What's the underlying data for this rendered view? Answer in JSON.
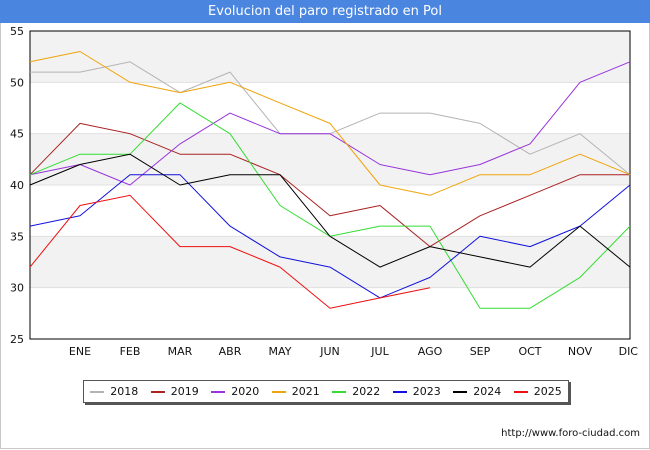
{
  "header": {
    "title": "Evolucion del paro registrado en Pol"
  },
  "source": "http://www.foro-ciudad.com",
  "chart_data": {
    "type": "line",
    "title": "Evolucion del paro registrado en Pol",
    "xlabel": "",
    "ylabel": "",
    "categories": [
      "",
      "ENE",
      "FEB",
      "MAR",
      "ABR",
      "MAY",
      "JUN",
      "JUL",
      "AGO",
      "SEP",
      "OCT",
      "NOV",
      "DIC"
    ],
    "ylim": [
      25,
      55
    ],
    "yticks": [
      25,
      30,
      35,
      40,
      45,
      50,
      55
    ],
    "grid": "horizontal bands",
    "legend_position": "bottom",
    "series": [
      {
        "name": "2018",
        "color": "#b4b4b4",
        "values": [
          51,
          51,
          52,
          49,
          51,
          45,
          45,
          47,
          47,
          46,
          43,
          45,
          41
        ]
      },
      {
        "name": "2019",
        "color": "#aa2222",
        "values": [
          41,
          46,
          45,
          43,
          43,
          41,
          37,
          38,
          34,
          37,
          39,
          41,
          41
        ]
      },
      {
        "name": "2020",
        "color": "#9933dd",
        "values": [
          41,
          42,
          40,
          44,
          47,
          45,
          45,
          42,
          41,
          42,
          44,
          50,
          52
        ]
      },
      {
        "name": "2021",
        "color": "#f0a30a",
        "values": [
          52,
          53,
          50,
          49,
          50,
          48,
          46,
          40,
          39,
          41,
          41,
          43,
          41
        ]
      },
      {
        "name": "2022",
        "color": "#33dd33",
        "values": [
          41,
          43,
          43,
          48,
          45,
          38,
          35,
          36,
          36,
          28,
          28,
          31,
          36
        ]
      },
      {
        "name": "2023",
        "color": "#1111dd",
        "values": [
          36,
          37,
          41,
          41,
          36,
          33,
          32,
          29,
          31,
          35,
          34,
          36,
          40
        ]
      },
      {
        "name": "2024",
        "color": "#000000",
        "values": [
          40,
          42,
          43,
          40,
          41,
          41,
          35,
          32,
          34,
          33,
          32,
          36,
          32
        ]
      },
      {
        "name": "2025",
        "color": "#ee1111",
        "values": [
          32,
          38,
          39,
          34,
          34,
          32,
          28,
          29,
          30,
          null,
          null,
          null,
          null
        ]
      }
    ]
  }
}
